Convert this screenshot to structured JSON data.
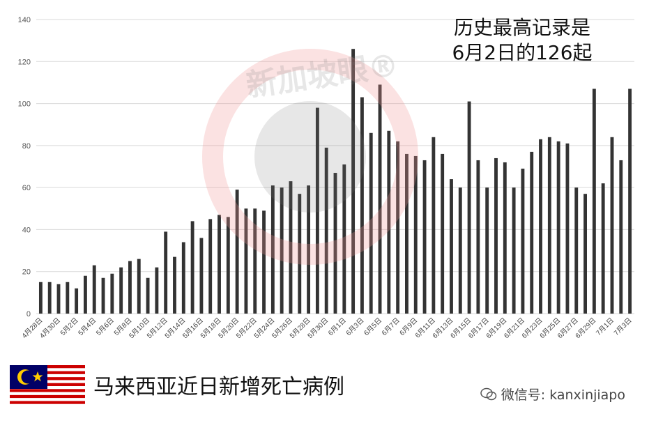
{
  "chart_data": {
    "type": "bar",
    "title": "",
    "xlabel": "",
    "ylabel": "",
    "ylim": [
      0,
      140
    ],
    "yticks": [
      0,
      20,
      40,
      60,
      80,
      100,
      120,
      140
    ],
    "grid": true,
    "bar_color": "#333333",
    "categories": [
      "4月28日",
      "4月29日",
      "4月30日",
      "5月1日",
      "5月2日",
      "5月3日",
      "5月4日",
      "5月5日",
      "5月6日",
      "5月7日",
      "5月8日",
      "5月9日",
      "5月10日",
      "5月11日",
      "5月12日",
      "5月13日",
      "5月14日",
      "5月15日",
      "5月16日",
      "5月17日",
      "5月18日",
      "5月19日",
      "5月20日",
      "5月21日",
      "5月22日",
      "5月23日",
      "5月24日",
      "5月25日",
      "5月26日",
      "5月27日",
      "5月28日",
      "5月29日",
      "5月30日",
      "5月31日",
      "6月1日",
      "6月2日",
      "6月3日",
      "6月4日",
      "6月5日",
      "6月6日",
      "6月7日",
      "6月8日",
      "6月9日",
      "6月10日",
      "6月11日",
      "6月12日",
      "6月13日",
      "6月14日",
      "6月15日",
      "6月16日",
      "6月17日",
      "6月18日",
      "6月19日",
      "6月20日",
      "6月21日",
      "6月22日",
      "6月23日",
      "6月24日",
      "6月25日",
      "6月26日",
      "6月27日",
      "6月28日",
      "6月29日",
      "6月30日",
      "7月1日",
      "7月2日",
      "7月3日"
    ],
    "tick_labels": [
      "4月28日",
      "4月30日",
      "5月2日",
      "5月4日",
      "5月6日",
      "5月8日",
      "5月10日",
      "5月12日",
      "5月14日",
      "5月16日",
      "5月18日",
      "5月20日",
      "5月22日",
      "5月24日",
      "5月26日",
      "5月28日",
      "5月30日",
      "6月1日",
      "6月3日",
      "6月5日",
      "6月7日",
      "6月9日",
      "6月11日",
      "6月13日",
      "6月15日",
      "6月17日",
      "6月19日",
      "6月21日",
      "6月23日",
      "6月25日",
      "6月27日",
      "6月29日",
      "7月1日",
      "7月3日"
    ],
    "values": [
      15,
      15,
      14,
      15,
      12,
      18,
      23,
      17,
      19,
      22,
      25,
      26,
      17,
      22,
      39,
      27,
      34,
      44,
      36,
      45,
      47,
      46,
      59,
      50,
      50,
      49,
      61,
      60,
      63,
      57,
      61,
      98,
      79,
      67,
      71,
      126,
      103,
      86,
      109,
      87,
      82,
      76,
      75,
      73,
      84,
      76,
      64,
      60,
      101,
      73,
      60,
      74,
      72,
      60,
      69,
      77,
      83,
      84,
      82,
      81,
      60,
      57,
      107,
      62,
      84,
      73,
      107
    ]
  },
  "annotation": {
    "line1": "历史最高记录是",
    "line2": "6月2日的126起"
  },
  "footer": {
    "title": "马来西亚近日新增死亡病例"
  },
  "wechat": {
    "label": "微信号: kanxinjiapo"
  },
  "watermark": {
    "text": "新加坡眼®"
  },
  "colors": {
    "watermark_ring": "#f2b5b5",
    "flag_red": "#cc0000",
    "flag_blue": "#010066",
    "flag_yellow": "#ffcc00"
  }
}
